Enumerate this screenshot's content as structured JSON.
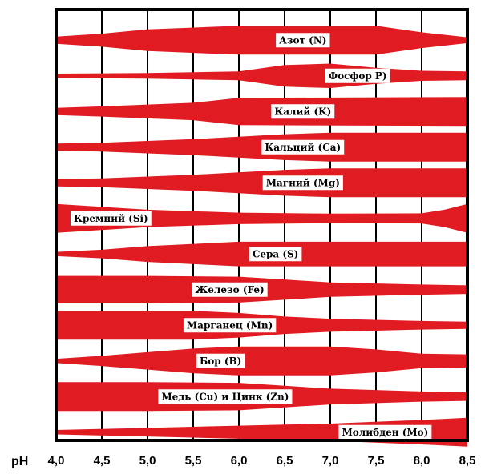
{
  "chart_data": {
    "type": "area",
    "title": "",
    "xlabel": "pH",
    "ylabel": "",
    "xlim": [
      4.0,
      8.5
    ],
    "x_ticks": [
      "4,0",
      "4,5",
      "5,0",
      "5,5",
      "6,0",
      "6,5",
      "7,0",
      "7,5",
      "8,0",
      "8,5"
    ],
    "grid": true,
    "band_color": "#e11b22",
    "series": [
      {
        "name": "Азот (N)",
        "x": [
          4.0,
          4.5,
          5.0,
          6.0,
          7.5,
          8.0,
          8.5
        ],
        "values": [
          0.25,
          0.45,
          0.75,
          1.0,
          1.0,
          0.55,
          0.2
        ]
      },
      {
        "name": "Фосфор  Р)",
        "x": [
          4.0,
          5.0,
          6.0,
          6.5,
          7.0,
          7.5,
          8.0,
          8.5
        ],
        "values": [
          0.15,
          0.2,
          0.3,
          0.75,
          0.85,
          0.55,
          0.35,
          0.3
        ]
      },
      {
        "name": "Калий (K)",
        "x": [
          4.0,
          4.5,
          5.5,
          6.0,
          8.5
        ],
        "values": [
          0.25,
          0.35,
          0.6,
          0.95,
          1.0
        ]
      },
      {
        "name": "Кальций (Ca)",
        "x": [
          4.0,
          4.5,
          5.5,
          6.5,
          7.0,
          8.5
        ],
        "values": [
          0.25,
          0.3,
          0.55,
          0.9,
          1.0,
          1.0
        ]
      },
      {
        "name": "Магний (Mg)",
        "x": [
          4.0,
          4.5,
          5.5,
          6.5,
          7.0,
          8.5
        ],
        "values": [
          0.25,
          0.3,
          0.55,
          0.9,
          1.0,
          1.0
        ]
      },
      {
        "name": "Кремний (Si)",
        "x": [
          4.0,
          5.0,
          6.0,
          7.0,
          8.0,
          8.25,
          8.5
        ],
        "values": [
          1.0,
          0.6,
          0.4,
          0.33,
          0.35,
          0.6,
          1.0
        ]
      },
      {
        "name": "Сера (S)",
        "x": [
          4.0,
          4.5,
          5.0,
          6.0,
          8.5
        ],
        "values": [
          0.15,
          0.3,
          0.55,
          0.85,
          0.85
        ]
      },
      {
        "name": "Железо (Fe)",
        "x": [
          4.0,
          5.0,
          6.0,
          6.5,
          7.0,
          8.0,
          8.5
        ],
        "values": [
          0.95,
          0.95,
          0.9,
          0.7,
          0.5,
          0.35,
          0.3
        ]
      },
      {
        "name": "Марганец (Mn)",
        "x": [
          4.0,
          5.5,
          6.0,
          6.5,
          7.0,
          8.0,
          8.5
        ],
        "values": [
          1.0,
          1.0,
          0.85,
          0.6,
          0.45,
          0.3,
          0.25
        ]
      },
      {
        "name": "Бор (B)",
        "x": [
          4.0,
          4.5,
          5.5,
          6.0,
          7.0,
          7.5,
          8.0,
          8.5
        ],
        "values": [
          0.15,
          0.35,
          0.85,
          1.0,
          1.0,
          0.8,
          0.5,
          0.45
        ]
      },
      {
        "name": "Медь (Cu) и Цинк (Zn)",
        "x": [
          4.0,
          5.0,
          6.0,
          6.5,
          7.0,
          8.0,
          8.5
        ],
        "values": [
          1.0,
          1.0,
          0.95,
          0.75,
          0.55,
          0.35,
          0.3
        ]
      },
      {
        "name": "Молибден (Mo)",
        "x": [
          4.0,
          5.0,
          6.0,
          7.0,
          8.0,
          8.5
        ],
        "values": [
          0.15,
          0.3,
          0.45,
          0.6,
          0.85,
          1.0
        ]
      }
    ],
    "label_positions_ph": [
      6.7,
      7.3,
      6.7,
      6.7,
      6.7,
      4.6,
      6.4,
      5.9,
      5.9,
      5.8,
      5.85,
      7.6
    ]
  }
}
